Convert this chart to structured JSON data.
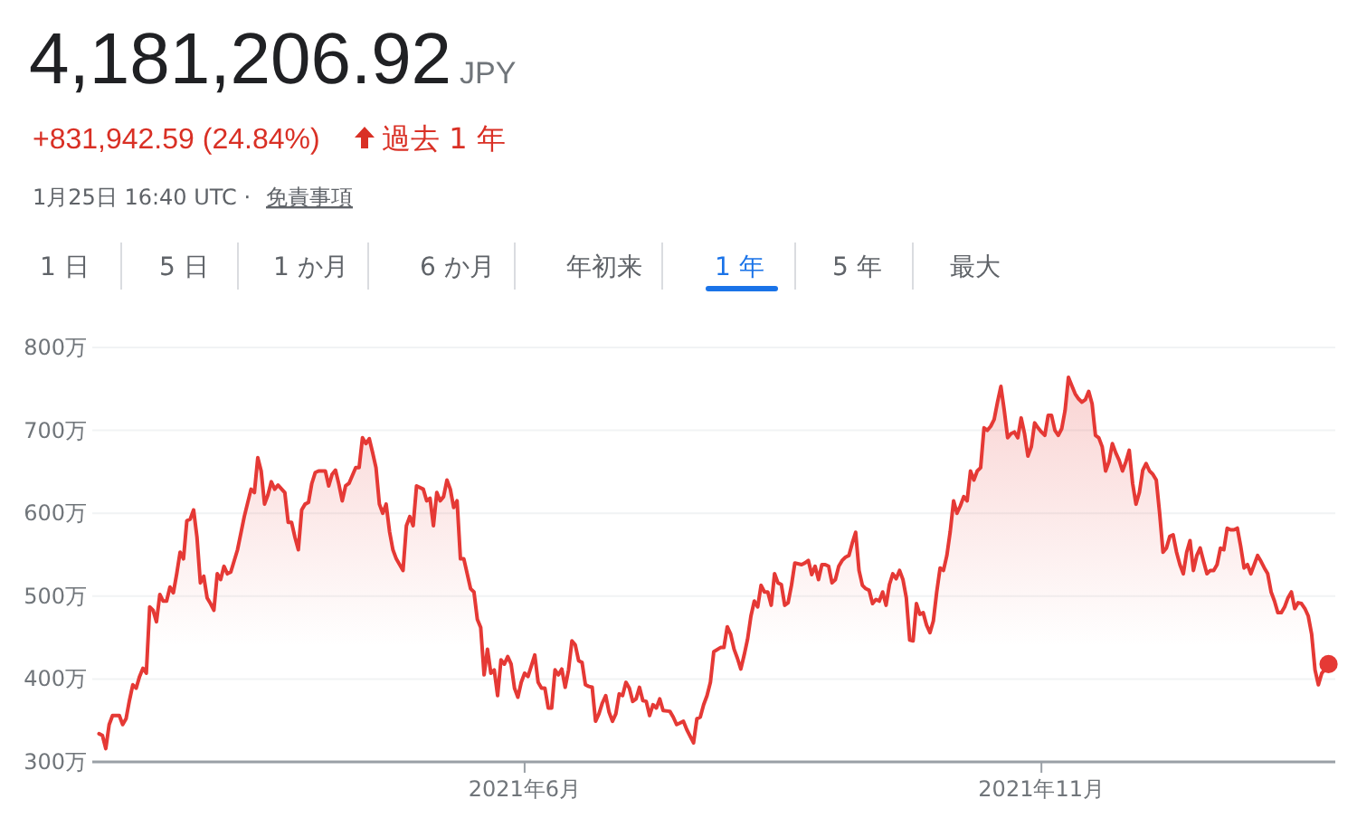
{
  "chart_data": {
    "type": "area",
    "title": "4,181,206.92",
    "annotations": [
      "JPY",
      "+831,942.59 (24.84%)",
      "過去 1 年",
      "1月25日 16:40 UTC ·",
      "免責事項",
      "1 日",
      "5 日",
      "1 か月",
      "6 か月",
      "年初来",
      "1 年",
      "5 年",
      "最大"
    ],
    "xlim": [
      "2021-01-24",
      "2022-01-27"
    ],
    "xticks": [
      {
        "value": "2021-06-01",
        "label": "2021年6月"
      },
      {
        "value": "2021-11-01",
        "label": "2021年11月"
      }
    ],
    "ylim": [
      300,
      800
    ],
    "yticks": [
      {
        "value": 300,
        "label": "300万"
      },
      {
        "value": 400,
        "label": "400万"
      },
      {
        "value": 500,
        "label": "500万"
      },
      {
        "value": 600,
        "label": "600万"
      },
      {
        "value": 700,
        "label": "700万"
      },
      {
        "value": 800,
        "label": "800万"
      }
    ],
    "grid": "y",
    "marker": "none",
    "line_style": "solid",
    "series": [
      {
        "color": "#e53935",
        "x": [
          "2021-01-26",
          "2021-01-27",
          "2021-01-28",
          "2021-01-29",
          "2021-01-30",
          "2021-02-01",
          "2021-02-02",
          "2021-02-03",
          "2021-02-04",
          "2021-02-05",
          "2021-02-06",
          "2021-02-07",
          "2021-02-08",
          "2021-02-09",
          "2021-02-10",
          "2021-02-11",
          "2021-02-12",
          "2021-02-13",
          "2021-02-14",
          "2021-02-15",
          "2021-02-16",
          "2021-02-17",
          "2021-02-18",
          "2021-02-19",
          "2021-02-20",
          "2021-02-21",
          "2021-02-22",
          "2021-02-23",
          "2021-02-24",
          "2021-02-25",
          "2021-02-26",
          "2021-02-27",
          "2021-02-28",
          "2021-03-01",
          "2021-03-02",
          "2021-03-03",
          "2021-03-04",
          "2021-03-05",
          "2021-03-06",
          "2021-03-08",
          "2021-03-10",
          "2021-03-12",
          "2021-03-13",
          "2021-03-14",
          "2021-03-15",
          "2021-03-16",
          "2021-03-17",
          "2021-03-18",
          "2021-03-19",
          "2021-03-20",
          "2021-03-22",
          "2021-03-23",
          "2021-03-24",
          "2021-03-25",
          "2021-03-26",
          "2021-03-27",
          "2021-03-28",
          "2021-03-29",
          "2021-03-30",
          "2021-03-31",
          "2021-04-01",
          "2021-04-03",
          "2021-04-04",
          "2021-04-05",
          "2021-04-06",
          "2021-04-07",
          "2021-04-08",
          "2021-04-09",
          "2021-04-10",
          "2021-04-12",
          "2021-04-13",
          "2021-04-14",
          "2021-04-15",
          "2021-04-16",
          "2021-04-17",
          "2021-04-18",
          "2021-04-19",
          "2021-04-20",
          "2021-04-21",
          "2021-04-22",
          "2021-04-23",
          "2021-04-24",
          "2021-04-26",
          "2021-04-27",
          "2021-04-28",
          "2021-04-29",
          "2021-04-30",
          "2021-05-02",
          "2021-05-03",
          "2021-05-04",
          "2021-05-05",
          "2021-05-06",
          "2021-05-07",
          "2021-05-08",
          "2021-05-09",
          "2021-05-10",
          "2021-05-11",
          "2021-05-12",
          "2021-05-13",
          "2021-05-14",
          "2021-05-16",
          "2021-05-17",
          "2021-05-18",
          "2021-05-19",
          "2021-05-20",
          "2021-05-21",
          "2021-05-22",
          "2021-05-23",
          "2021-05-24",
          "2021-05-25",
          "2021-05-26",
          "2021-05-27",
          "2021-05-28",
          "2021-05-29",
          "2021-05-30",
          "2021-05-31",
          "2021-06-01",
          "2021-06-02",
          "2021-06-04",
          "2021-06-05",
          "2021-06-06",
          "2021-06-07",
          "2021-06-08",
          "2021-06-09",
          "2021-06-10",
          "2021-06-11",
          "2021-06-12",
          "2021-06-13",
          "2021-06-14",
          "2021-06-15",
          "2021-06-16",
          "2021-06-17",
          "2021-06-18",
          "2021-06-19",
          "2021-06-20",
          "2021-06-21",
          "2021-06-22",
          "2021-06-23",
          "2021-06-24",
          "2021-06-25",
          "2021-06-26",
          "2021-06-27",
          "2021-06-28",
          "2021-06-29",
          "2021-06-30",
          "2021-07-01",
          "2021-07-02",
          "2021-07-03",
          "2021-07-04",
          "2021-07-05",
          "2021-07-06",
          "2021-07-07",
          "2021-07-08",
          "2021-07-09",
          "2021-07-10",
          "2021-07-11",
          "2021-07-12",
          "2021-07-14",
          "2021-07-15",
          "2021-07-16",
          "2021-07-17",
          "2021-07-18",
          "2021-07-19",
          "2021-07-21",
          "2021-07-22",
          "2021-07-23",
          "2021-07-24",
          "2021-07-25",
          "2021-07-26",
          "2021-07-27",
          "2021-07-29",
          "2021-07-30",
          "2021-07-31",
          "2021-08-01",
          "2021-08-02",
          "2021-08-03",
          "2021-08-04",
          "2021-08-05",
          "2021-08-06",
          "2021-08-07",
          "2021-08-08",
          "2021-08-09",
          "2021-08-10",
          "2021-08-11",
          "2021-08-12",
          "2021-08-13",
          "2021-08-14",
          "2021-08-15",
          "2021-08-16",
          "2021-08-17",
          "2021-08-18",
          "2021-08-19",
          "2021-08-20",
          "2021-08-22",
          "2021-08-23",
          "2021-08-24",
          "2021-08-25",
          "2021-08-26",
          "2021-08-27",
          "2021-08-28",
          "2021-08-29",
          "2021-08-30",
          "2021-08-31",
          "2021-09-01",
          "2021-09-02",
          "2021-09-03",
          "2021-09-04",
          "2021-09-05",
          "2021-09-06",
          "2021-09-07",
          "2021-09-08",
          "2021-09-09",
          "2021-09-10",
          "2021-09-11",
          "2021-09-12",
          "2021-09-13",
          "2021-09-14",
          "2021-09-15",
          "2021-09-16",
          "2021-09-17",
          "2021-09-18",
          "2021-09-19",
          "2021-09-20",
          "2021-09-21",
          "2021-09-22",
          "2021-09-23",
          "2021-09-24",
          "2021-09-25",
          "2021-09-26",
          "2021-09-27",
          "2021-09-28",
          "2021-09-29",
          "2021-09-30",
          "2021-10-01",
          "2021-10-02",
          "2021-10-03",
          "2021-10-04",
          "2021-10-05",
          "2021-10-06",
          "2021-10-07",
          "2021-10-08",
          "2021-10-09",
          "2021-10-10",
          "2021-10-11",
          "2021-10-12",
          "2021-10-13",
          "2021-10-14",
          "2021-10-15",
          "2021-10-16",
          "2021-10-17",
          "2021-10-18",
          "2021-10-19",
          "2021-10-20",
          "2021-10-21",
          "2021-10-22",
          "2021-10-23",
          "2021-10-24",
          "2021-10-25",
          "2021-10-26",
          "2021-10-27",
          "2021-10-28",
          "2021-10-29",
          "2021-10-30",
          "2021-10-31",
          "2021-11-01",
          "2021-11-02",
          "2021-11-03",
          "2021-11-04",
          "2021-11-05",
          "2021-11-06",
          "2021-11-07",
          "2021-11-08",
          "2021-11-09",
          "2021-11-10",
          "2021-11-11",
          "2021-11-12",
          "2021-11-13",
          "2021-11-14",
          "2021-11-15",
          "2021-11-16",
          "2021-11-17",
          "2021-11-18",
          "2021-11-19",
          "2021-11-20",
          "2021-11-21",
          "2021-11-22",
          "2021-11-23",
          "2021-11-24",
          "2021-11-25",
          "2021-11-26",
          "2021-11-27",
          "2021-11-28",
          "2021-11-29",
          "2021-11-30",
          "2021-12-01",
          "2021-12-02",
          "2021-12-03",
          "2021-12-04",
          "2021-12-05",
          "2021-12-06",
          "2021-12-07",
          "2021-12-08",
          "2021-12-09",
          "2021-12-10",
          "2021-12-11",
          "2021-12-12",
          "2021-12-13",
          "2021-12-14",
          "2021-12-15",
          "2021-12-16",
          "2021-12-17",
          "2021-12-18",
          "2021-12-19",
          "2021-12-20",
          "2021-12-21",
          "2021-12-22",
          "2021-12-23",
          "2021-12-24",
          "2021-12-25",
          "2021-12-26",
          "2021-12-27",
          "2021-12-28",
          "2021-12-29",
          "2021-12-30",
          "2021-12-31",
          "2022-01-01",
          "2022-01-02",
          "2022-01-03",
          "2022-01-04",
          "2022-01-05",
          "2022-01-06",
          "2022-01-07",
          "2022-01-08",
          "2022-01-09",
          "2022-01-10",
          "2022-01-11",
          "2022-01-12",
          "2022-01-13",
          "2022-01-14",
          "2022-01-15",
          "2022-01-16",
          "2022-01-17",
          "2022-01-18",
          "2022-01-19",
          "2022-01-20",
          "2022-01-21",
          "2022-01-22",
          "2022-01-23",
          "2022-01-24",
          "2022-01-25"
        ],
        "values": [
          334,
          332,
          316,
          345,
          356,
          356,
          345,
          352,
          374,
          393,
          389,
          403,
          413,
          407,
          487,
          483,
          469,
          502,
          494,
          494,
          511,
          504,
          527,
          553,
          545,
          591,
          593,
          604,
          571,
          516,
          524,
          498,
          491,
          483,
          527,
          520,
          536,
          527,
          529,
          556,
          596,
          629,
          625,
          667,
          651,
          611,
          622,
          638,
          629,
          634,
          625,
          589,
          589,
          571,
          556,
          604,
          611,
          613,
          636,
          649,
          651,
          651,
          633,
          647,
          652,
          635,
          615,
          633,
          636,
          655,
          655,
          691,
          684,
          690,
          673,
          655,
          611,
          600,
          611,
          578,
          556,
          545,
          531,
          585,
          596,
          585,
          633,
          629,
          615,
          618,
          585,
          625,
          615,
          620,
          640,
          629,
          607,
          615,
          545,
          545,
          509,
          505,
          472,
          462,
          405,
          436,
          407,
          411,
          380,
          423,
          418,
          427,
          418,
          389,
          378,
          396,
          407,
          403,
          429,
          396,
          389,
          389,
          365,
          365,
          411,
          405,
          412,
          390,
          411,
          446,
          441,
          422,
          420,
          393,
          391,
          390,
          349,
          358,
          371,
          380,
          360,
          349,
          358,
          382,
          380,
          396,
          389,
          373,
          376,
          390,
          374,
          373,
          356,
          369,
          365,
          376,
          362,
          361,
          354,
          345,
          347,
          349,
          339,
          323,
          352,
          354,
          369,
          380,
          396,
          433,
          438,
          438,
          463,
          454,
          436,
          425,
          412,
          429,
          448,
          476,
          494,
          487,
          513,
          505,
          505,
          489,
          527,
          516,
          514,
          489,
          492,
          513,
          540,
          538,
          540,
          543,
          526,
          536,
          520,
          538,
          538,
          536,
          516,
          520,
          536,
          543,
          547,
          549,
          564,
          577,
          531,
          513,
          509,
          507,
          491,
          496,
          494,
          505,
          489,
          514,
          527,
          521,
          531,
          520,
          498,
          447,
          446,
          491,
          478,
          480,
          465,
          456,
          470,
          505,
          534,
          531,
          549,
          578,
          615,
          600,
          609,
          620,
          615,
          651,
          640,
          651,
          655,
          703,
          700,
          705,
          713,
          734,
          753,
          724,
          691,
          696,
          698,
          691,
          715,
          696,
          669,
          680,
          709,
          703,
          698,
          694,
          718,
          718,
          700,
          694,
          702,
          724,
          764,
          754,
          744,
          738,
          734,
          737,
          747,
          732,
          694,
          691,
          680,
          651,
          662,
          684,
          673,
          664,
          651,
          662,
          676,
          636,
          611,
          625,
          652,
          660,
          651,
          647,
          640,
          600,
          553,
          558,
          572,
          574,
          553,
          538,
          527,
          553,
          567,
          531,
          549,
          558,
          542,
          527,
          531,
          531,
          538,
          558,
          556,
          582,
          580,
          580,
          582,
          560,
          534,
          538,
          527,
          538,
          549,
          542,
          534,
          527,
          505,
          494,
          480,
          480,
          487,
          498,
          505,
          485,
          492,
          491,
          485,
          476,
          454,
          411,
          393,
          407,
          412,
          418
        ]
      },
      {
        "type": "scatter",
        "color": "#e53935",
        "marker": "circle",
        "x": [
          "2022-01-25"
        ],
        "values": [
          418
        ]
      }
    ]
  }
}
